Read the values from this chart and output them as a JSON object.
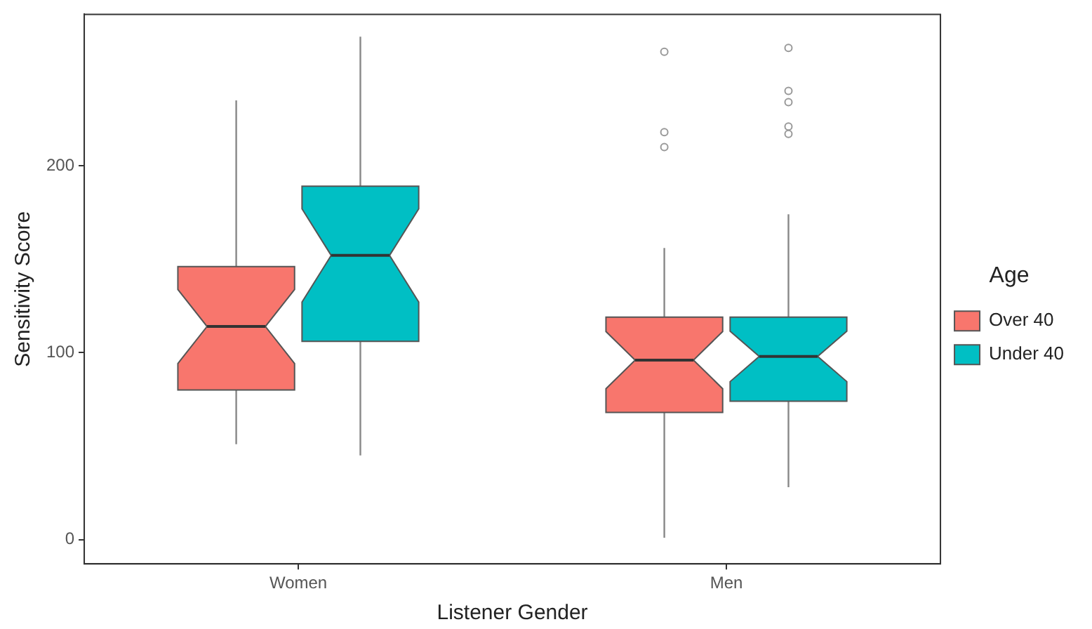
{
  "chart_data": {
    "type": "box",
    "xlabel": "Listener Gender",
    "ylabel": "Sensitivity Score",
    "legend_title": "Age",
    "legend": "right",
    "grid": false,
    "categories": [
      "Women",
      "Men"
    ],
    "ylim": [
      -13,
      281
    ],
    "yticks": [
      0,
      100,
      200
    ],
    "series": [
      {
        "name": "Over 40",
        "color": "#f8766d",
        "boxes": [
          {
            "low": 51,
            "q1": 80,
            "median": 114,
            "q3": 146,
            "high": 235
          },
          {
            "low": 1,
            "q1": 68,
            "median": 96,
            "q3": 119,
            "high": 156,
            "outliers": [
              261,
              218,
              210
            ]
          }
        ]
      },
      {
        "name": "Under 40",
        "color": "#00bfc4",
        "boxes": [
          {
            "low": 45,
            "q1": 106,
            "median": 152,
            "q3": 189,
            "high": 269
          },
          {
            "low": 28,
            "q1": 74,
            "median": 98,
            "q3": 119,
            "high": 174,
            "outliers": [
              263,
              240,
              234,
              221,
              217
            ]
          }
        ]
      }
    ]
  }
}
